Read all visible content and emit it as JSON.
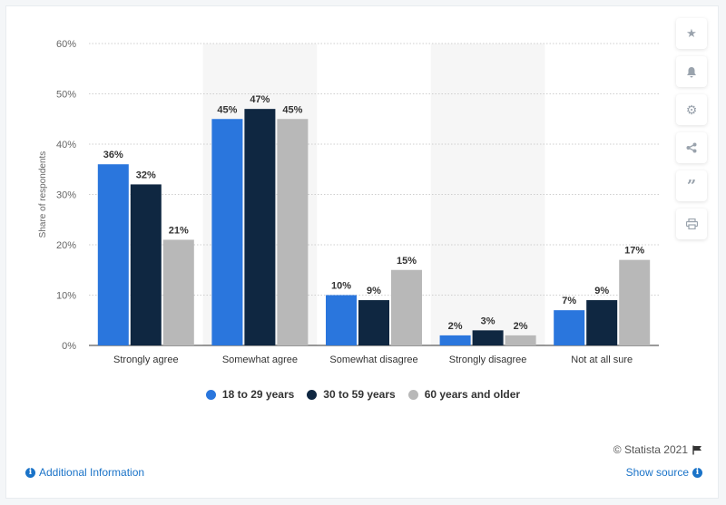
{
  "chart_data": {
    "type": "bar",
    "categories": [
      "Strongly agree",
      "Somewhat agree",
      "Somewhat disagree",
      "Strongly disagree",
      "Not at all sure"
    ],
    "series": [
      {
        "name": "18 to 29 years",
        "values": [
          36,
          45,
          10,
          2,
          7
        ],
        "color": "#2a76dd"
      },
      {
        "name": "30 to 59 years",
        "values": [
          32,
          47,
          9,
          3,
          9
        ],
        "color": "#0f2741"
      },
      {
        "name": "60 years and older",
        "values": [
          21,
          45,
          15,
          2,
          17
        ],
        "color": "#b8b8b8"
      }
    ],
    "ylabel": "Share of respondents",
    "ylim": [
      0,
      60
    ],
    "yticks": [
      0,
      10,
      20,
      30,
      40,
      50,
      60
    ],
    "value_suffix": "%",
    "grid": true,
    "legend": "bottom"
  },
  "legend_items": [
    "18 to 29 years",
    "30 to 59 years",
    "60 years and older"
  ],
  "footer": {
    "credit": "© Statista 2021",
    "additional_info": "Additional Information",
    "show_source": "Show source"
  },
  "side_icons": [
    "star-icon",
    "bell-icon",
    "gear-icon",
    "share-icon",
    "quote-icon",
    "print-icon"
  ]
}
